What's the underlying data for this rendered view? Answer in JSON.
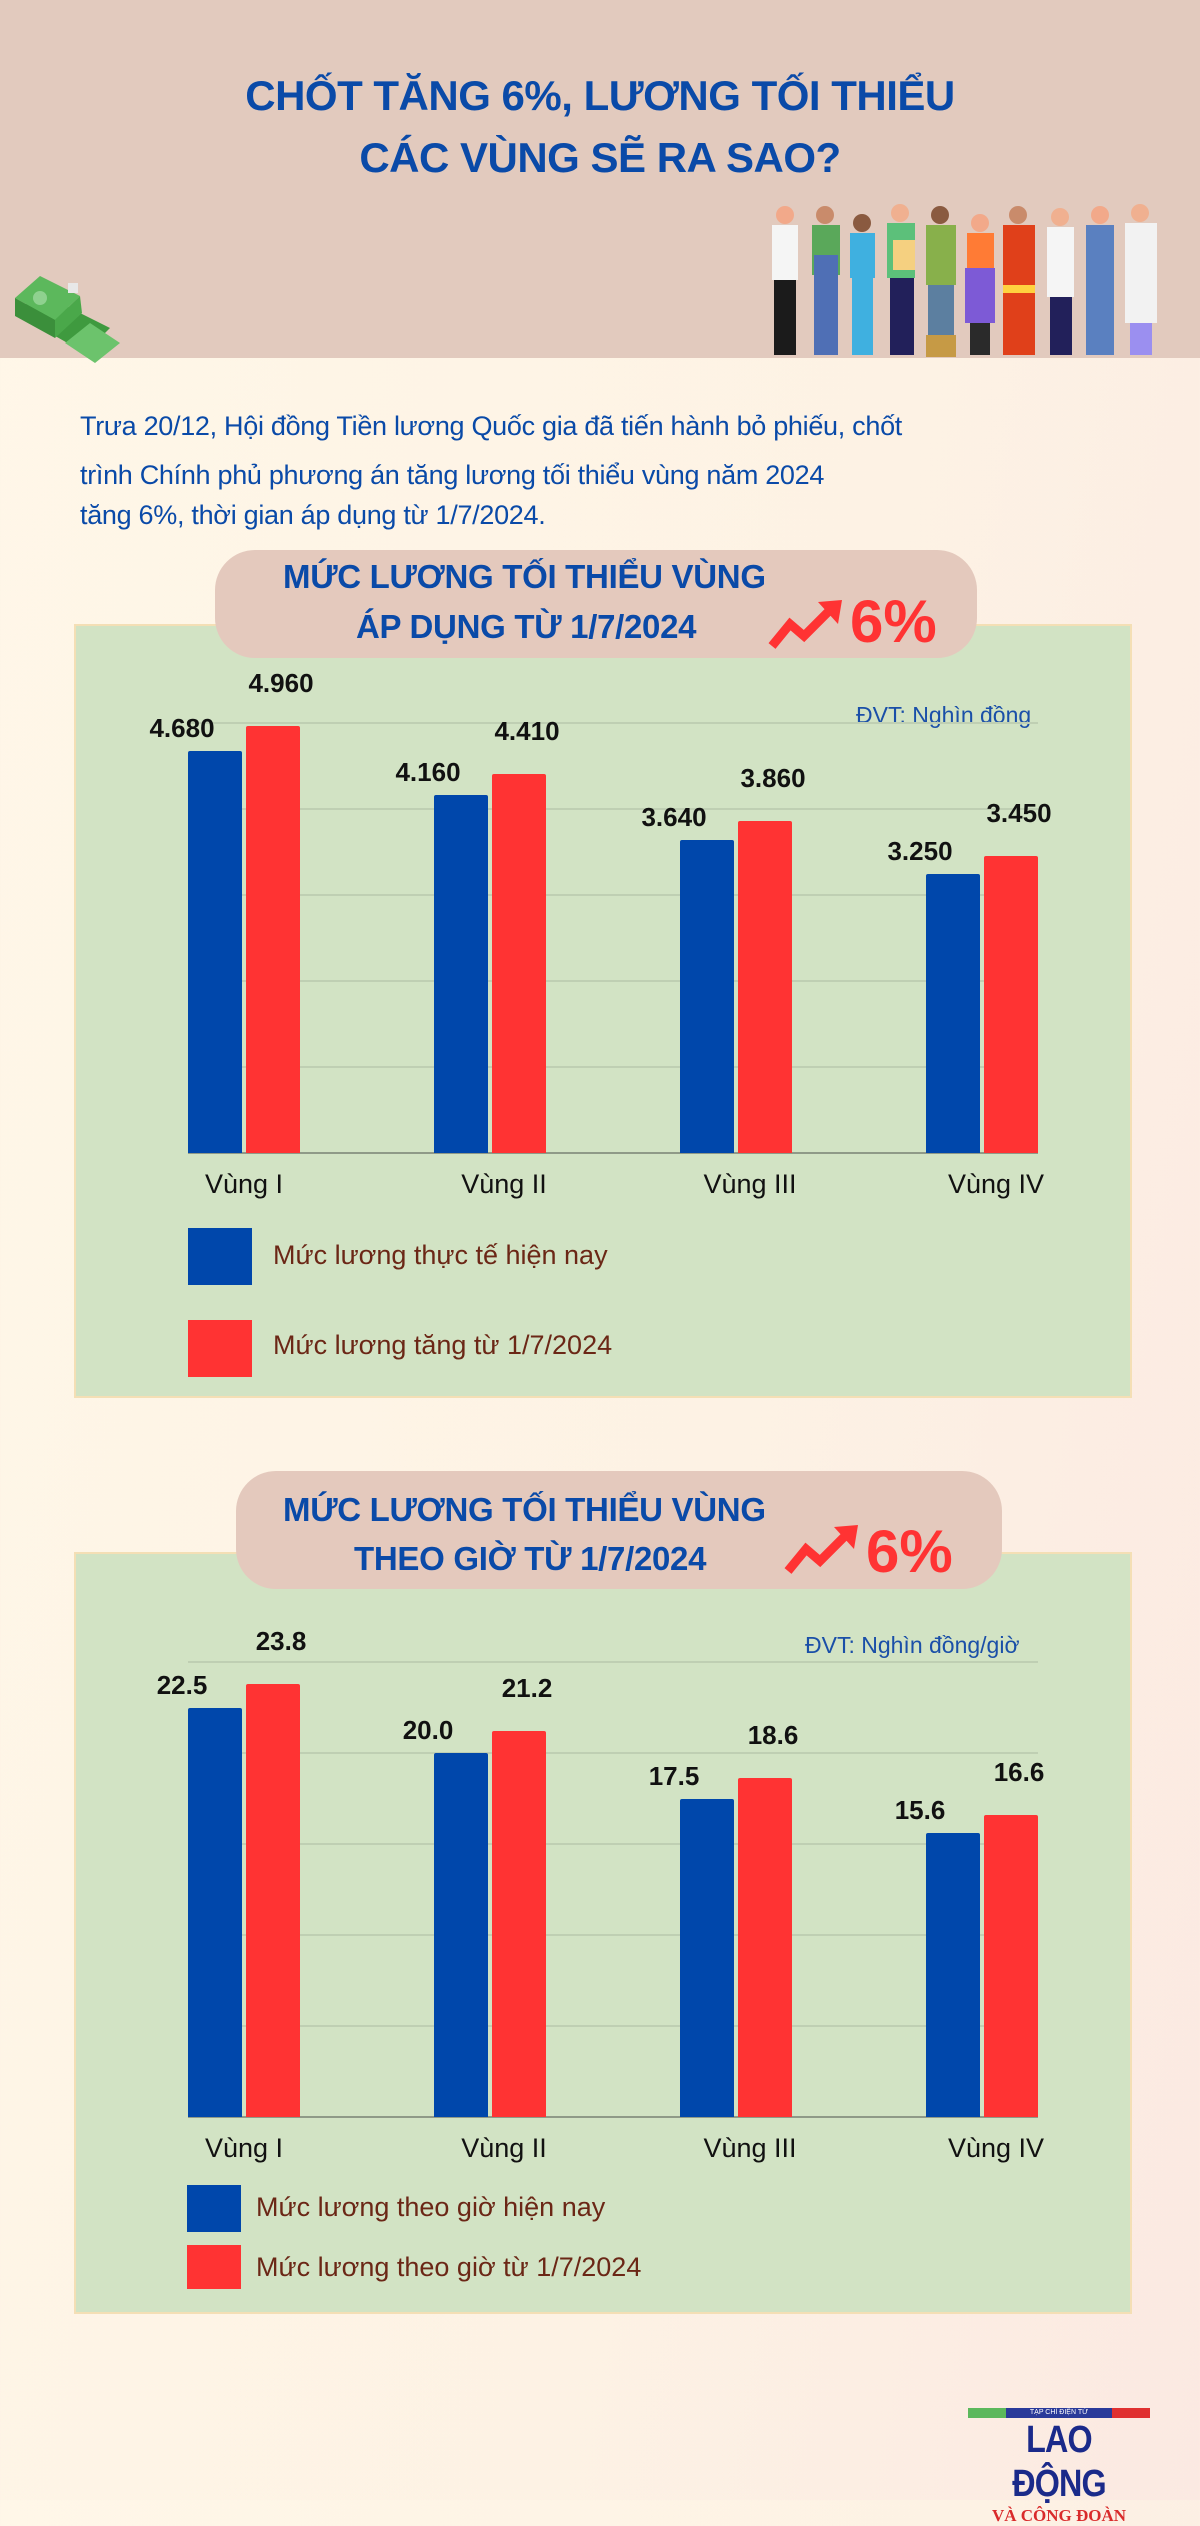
{
  "header": {
    "title_line1": "CHỐT TĂNG 6%, LƯƠNG TỐI THIỂU",
    "title_line2": "CÁC VÙNG SẼ RA SAO?"
  },
  "intro": {
    "line1": "Trưa 20/12, Hội đồng Tiền lương Quốc gia đã tiến hành bỏ phiếu, chốt",
    "line2": "trình Chính phủ phương án tăng lương tối thiểu vùng năm 2024",
    "line3": "tăng 6%, thời gian áp dụng từ 1/7/2024."
  },
  "colors": {
    "current": "#0047ab",
    "new": "#ff3333",
    "title": "#0a4aa8",
    "panel": "#d2e3c4"
  },
  "chart_data": [
    {
      "type": "bar",
      "title_line1": "MỨC LƯƠNG TỐI THIỂU VÙNG",
      "title_line2": "ÁP DỤNG TỪ 1/7/2024",
      "badge": "6%",
      "badge_icon": "trend-up-arrow-icon",
      "unit": "ĐVT: Nghìn đồng",
      "categories": [
        "Vùng I",
        "Vùng II",
        "Vùng III",
        "Vùng IV"
      ],
      "series": [
        {
          "name": "Mức lương thực tế hiện nay",
          "values": [
            4680,
            4160,
            3640,
            3250
          ],
          "labels": [
            "4.680",
            "4.160",
            "3.640",
            "3.250"
          ],
          "color": "#0047ab"
        },
        {
          "name": "Mức lương tăng từ 1/7/2024",
          "values": [
            4960,
            4410,
            3860,
            3450
          ],
          "labels": [
            "4.960",
            "4.410",
            "3.860",
            "3.450"
          ],
          "color": "#ff3333"
        }
      ],
      "ylim": [
        0,
        5000
      ],
      "grid": true,
      "legend": "bottom-left"
    },
    {
      "type": "bar",
      "title_line1": "MỨC LƯƠNG TỐI THIỂU VÙNG",
      "title_line2": "THEO GIỜ TỪ 1/7/2024",
      "badge": "6%",
      "badge_icon": "trend-up-arrow-icon",
      "unit": "ĐVT: Nghìn đồng/giờ",
      "categories": [
        "Vùng I",
        "Vùng II",
        "Vùng III",
        "Vùng IV"
      ],
      "series": [
        {
          "name": "Mức lương theo giờ hiện nay",
          "values": [
            22.5,
            20.0,
            17.5,
            15.6
          ],
          "labels": [
            "22.5",
            "20.0",
            "17.5",
            "15.6"
          ],
          "color": "#0047ab"
        },
        {
          "name": "Mức lương theo giờ từ 1/7/2024",
          "values": [
            23.8,
            21.2,
            18.6,
            16.6
          ],
          "labels": [
            "23.8",
            "21.2",
            "18.6",
            "16.6"
          ],
          "color": "#ff3333"
        }
      ],
      "ylim": [
        0,
        25
      ],
      "grid": true,
      "legend": "bottom-left"
    }
  ],
  "footer": {
    "logo_top": "TẠP CHÍ ĐIỆN TỬ",
    "logo_main": "LAO ĐỘNG",
    "logo_sub": "VÀ CÔNG ĐOÀN"
  }
}
